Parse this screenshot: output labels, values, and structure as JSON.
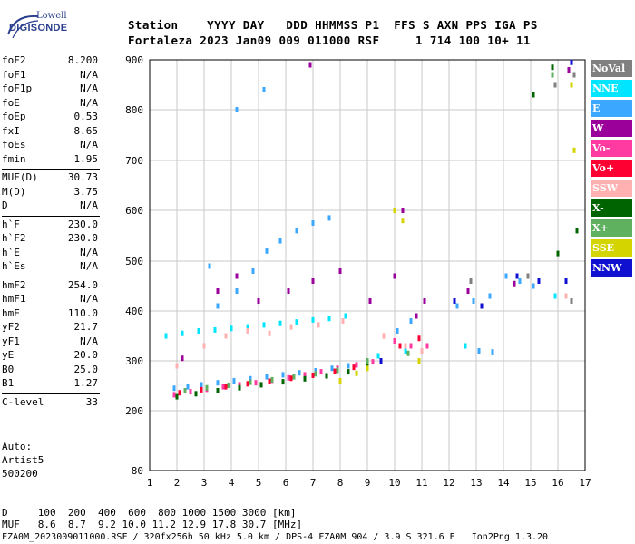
{
  "logo": {
    "line1": "Lowell",
    "line2": "DIGISONDE"
  },
  "header": {
    "line1": "Station    YYYY DAY   DDD HHMMSS P1  FFS S AXN PPS IGA PS",
    "line2": "Fortaleza 2023 Jan09 009 011000 RSF     1 714 100 10+ 11"
  },
  "params": {
    "group1": [
      {
        "k": "foF2",
        "v": "8.200"
      },
      {
        "k": "foF1",
        "v": "N/A"
      },
      {
        "k": "foF1p",
        "v": "N/A"
      },
      {
        "k": "foE",
        "v": "N/A"
      },
      {
        "k": "foEp",
        "v": "0.53"
      },
      {
        "k": "fxI",
        "v": "8.65"
      },
      {
        "k": "foEs",
        "v": "N/A"
      },
      {
        "k": "fmin",
        "v": "1.95"
      }
    ],
    "group2": [
      {
        "k": "MUF(D)",
        "v": "30.73"
      },
      {
        "k": "M(D)",
        "v": "3.75"
      },
      {
        "k": "D",
        "v": "N/A"
      }
    ],
    "group3": [
      {
        "k": "h`F",
        "v": "230.0"
      },
      {
        "k": "h`F2",
        "v": "230.0"
      },
      {
        "k": "h`E",
        "v": "N/A"
      },
      {
        "k": "h`Es",
        "v": "N/A"
      }
    ],
    "group4": [
      {
        "k": "hmF2",
        "v": "254.0"
      },
      {
        "k": "hmF1",
        "v": "N/A"
      },
      {
        "k": "hmE",
        "v": "110.0"
      },
      {
        "k": "yF2",
        "v": "21.7"
      },
      {
        "k": "yF1",
        "v": "N/A"
      },
      {
        "k": "yE",
        "v": "20.0"
      },
      {
        "k": "B0",
        "v": "25.0"
      },
      {
        "k": "B1",
        "v": "1.27"
      }
    ],
    "group5": [
      {
        "k": "C-level",
        "v": "33"
      }
    ]
  },
  "auto": {
    "line1": "Auto:",
    "line2": "Artist5",
    "line3": "500200"
  },
  "legend": [
    {
      "label": "NoVal",
      "color": "#808080"
    },
    {
      "label": "NNE",
      "color": "#00e5ff"
    },
    {
      "label": "E",
      "color": "#3ba7ff"
    },
    {
      "label": "W",
      "color": "#9b009b"
    },
    {
      "label": "Vo-",
      "color": "#ff3aa0"
    },
    {
      "label": "Vo+",
      "color": "#ff0033"
    },
    {
      "label": "SSW",
      "color": "#ffb0b0"
    },
    {
      "label": "X-",
      "color": "#006400"
    },
    {
      "label": "X+",
      "color": "#5fb05f"
    },
    {
      "label": "SSE",
      "color": "#d4d400"
    },
    {
      "label": "NNW",
      "color": "#1010d0"
    }
  ],
  "bottom": {
    "line1": "D     100  200  400  600  800 1000 1500 3000 [km]",
    "line2": "MUF   8.6  8.7  9.2 10.0 11.2 12.9 17.8 30.7 [MHz]",
    "line3": "FZA0M_2023009011000.RSF / 320fx256h 50 kHz 5.0 km / DPS-4 FZA0M 904 / 3.9 S 321.6 E   Ion2Png 1.3.20"
  },
  "chart_data": {
    "type": "scatter",
    "xlim": [
      1,
      17
    ],
    "ylim": [
      80,
      900
    ],
    "x_ticks": [
      1,
      2,
      3,
      4,
      5,
      6,
      7,
      8,
      9,
      10,
      11,
      12,
      13,
      14,
      15,
      16,
      17
    ],
    "y_ticks": [
      80,
      200,
      300,
      400,
      500,
      600,
      700,
      800,
      900
    ],
    "xlabel": "",
    "ylabel": "",
    "grid": true,
    "series": [
      {
        "color": "#3ba7ff",
        "points": [
          [
            1.9,
            245
          ],
          [
            2.4,
            248
          ],
          [
            2.9,
            252
          ],
          [
            3.5,
            256
          ],
          [
            4.1,
            260
          ],
          [
            4.7,
            264
          ],
          [
            5.3,
            268
          ],
          [
            5.9,
            272
          ],
          [
            6.5,
            276
          ],
          [
            7.1,
            280
          ],
          [
            7.7,
            285
          ],
          [
            8.3,
            290
          ],
          [
            3.5,
            410
          ],
          [
            4.2,
            440
          ],
          [
            4.8,
            480
          ],
          [
            5.3,
            520
          ],
          [
            5.8,
            540
          ],
          [
            6.4,
            560
          ],
          [
            7.0,
            575
          ],
          [
            7.6,
            585
          ],
          [
            10.1,
            360
          ],
          [
            10.6,
            380
          ],
          [
            12.3,
            410
          ],
          [
            12.9,
            420
          ],
          [
            13.5,
            430
          ],
          [
            14.1,
            470
          ],
          [
            14.6,
            460
          ],
          [
            15.1,
            450
          ],
          [
            13.1,
            320
          ],
          [
            13.6,
            318
          ],
          [
            5.2,
            840
          ],
          [
            4.2,
            800
          ],
          [
            3.2,
            490
          ]
        ]
      },
      {
        "color": "#00e5ff",
        "points": [
          [
            1.6,
            350
          ],
          [
            2.2,
            355
          ],
          [
            2.8,
            360
          ],
          [
            3.4,
            362
          ],
          [
            4.0,
            365
          ],
          [
            4.6,
            368
          ],
          [
            5.2,
            372
          ],
          [
            5.8,
            375
          ],
          [
            6.4,
            378
          ],
          [
            7.0,
            382
          ],
          [
            7.6,
            385
          ],
          [
            8.2,
            390
          ],
          [
            9.4,
            310
          ],
          [
            10.4,
            320
          ],
          [
            12.6,
            330
          ],
          [
            15.9,
            430
          ]
        ]
      },
      {
        "color": "#9b009b",
        "points": [
          [
            2.2,
            305
          ],
          [
            3.5,
            440
          ],
          [
            4.2,
            470
          ],
          [
            5.0,
            420
          ],
          [
            6.1,
            440
          ],
          [
            7.0,
            460
          ],
          [
            8.0,
            480
          ],
          [
            9.1,
            420
          ],
          [
            10.0,
            470
          ],
          [
            10.3,
            600
          ],
          [
            10.8,
            390
          ],
          [
            11.1,
            420
          ],
          [
            12.7,
            440
          ],
          [
            14.4,
            455
          ],
          [
            16.4,
            880
          ],
          [
            6.9,
            890
          ]
        ]
      },
      {
        "color": "#ff3aa0",
        "points": [
          [
            1.9,
            232
          ],
          [
            2.5,
            238
          ],
          [
            3.1,
            243
          ],
          [
            3.7,
            248
          ],
          [
            4.3,
            252
          ],
          [
            4.9,
            256
          ],
          [
            5.5,
            261
          ],
          [
            6.1,
            266
          ],
          [
            6.7,
            272
          ],
          [
            7.3,
            278
          ],
          [
            7.9,
            285
          ],
          [
            8.6,
            292
          ],
          [
            9.2,
            298
          ],
          [
            10.0,
            340
          ],
          [
            10.6,
            330
          ],
          [
            11.2,
            330
          ]
        ]
      },
      {
        "color": "#ff0033",
        "points": [
          [
            2.1,
            236
          ],
          [
            2.9,
            242
          ],
          [
            3.8,
            248
          ],
          [
            4.6,
            254
          ],
          [
            5.4,
            259
          ],
          [
            6.2,
            265
          ],
          [
            7.0,
            271
          ],
          [
            7.8,
            279
          ],
          [
            8.5,
            287
          ],
          [
            10.2,
            330
          ],
          [
            10.9,
            345
          ]
        ]
      },
      {
        "color": "#ffb0b0",
        "points": [
          [
            2.0,
            290
          ],
          [
            3.0,
            330
          ],
          [
            3.8,
            350
          ],
          [
            4.6,
            360
          ],
          [
            5.4,
            355
          ],
          [
            6.2,
            368
          ],
          [
            7.2,
            372
          ],
          [
            8.1,
            380
          ],
          [
            9.6,
            350
          ],
          [
            10.4,
            330
          ],
          [
            11.0,
            320
          ],
          [
            16.3,
            430
          ]
        ]
      },
      {
        "color": "#006400",
        "points": [
          [
            2.0,
            228
          ],
          [
            2.7,
            234
          ],
          [
            3.5,
            240
          ],
          [
            4.3,
            246
          ],
          [
            5.1,
            252
          ],
          [
            5.9,
            258
          ],
          [
            6.7,
            264
          ],
          [
            7.5,
            270
          ],
          [
            8.3,
            278
          ],
          [
            9.0,
            290
          ],
          [
            15.8,
            885
          ],
          [
            16.7,
            560
          ],
          [
            16.0,
            515
          ],
          [
            15.1,
            830
          ]
        ]
      },
      {
        "color": "#5fb05f",
        "points": [
          [
            2.3,
            240
          ],
          [
            3.1,
            246
          ],
          [
            3.9,
            251
          ],
          [
            4.7,
            257
          ],
          [
            5.5,
            262
          ],
          [
            6.3,
            268
          ],
          [
            7.1,
            274
          ],
          [
            7.9,
            281
          ],
          [
            9.0,
            300
          ],
          [
            10.5,
            315
          ],
          [
            15.8,
            870
          ]
        ]
      },
      {
        "color": "#d4d400",
        "points": [
          [
            8.0,
            260
          ],
          [
            8.6,
            275
          ],
          [
            9.0,
            285
          ],
          [
            10.0,
            600
          ],
          [
            10.3,
            580
          ],
          [
            10.9,
            300
          ],
          [
            16.5,
            850
          ],
          [
            16.6,
            720
          ]
        ]
      },
      {
        "color": "#1010d0",
        "points": [
          [
            12.2,
            420
          ],
          [
            13.2,
            410
          ],
          [
            14.5,
            470
          ],
          [
            15.3,
            460
          ],
          [
            16.5,
            895
          ],
          [
            16.3,
            460
          ],
          [
            9.5,
            300
          ]
        ]
      },
      {
        "color": "#808080",
        "points": [
          [
            12.8,
            460
          ],
          [
            14.9,
            470
          ],
          [
            15.9,
            850
          ],
          [
            16.6,
            870
          ],
          [
            16.5,
            420
          ]
        ]
      }
    ]
  }
}
